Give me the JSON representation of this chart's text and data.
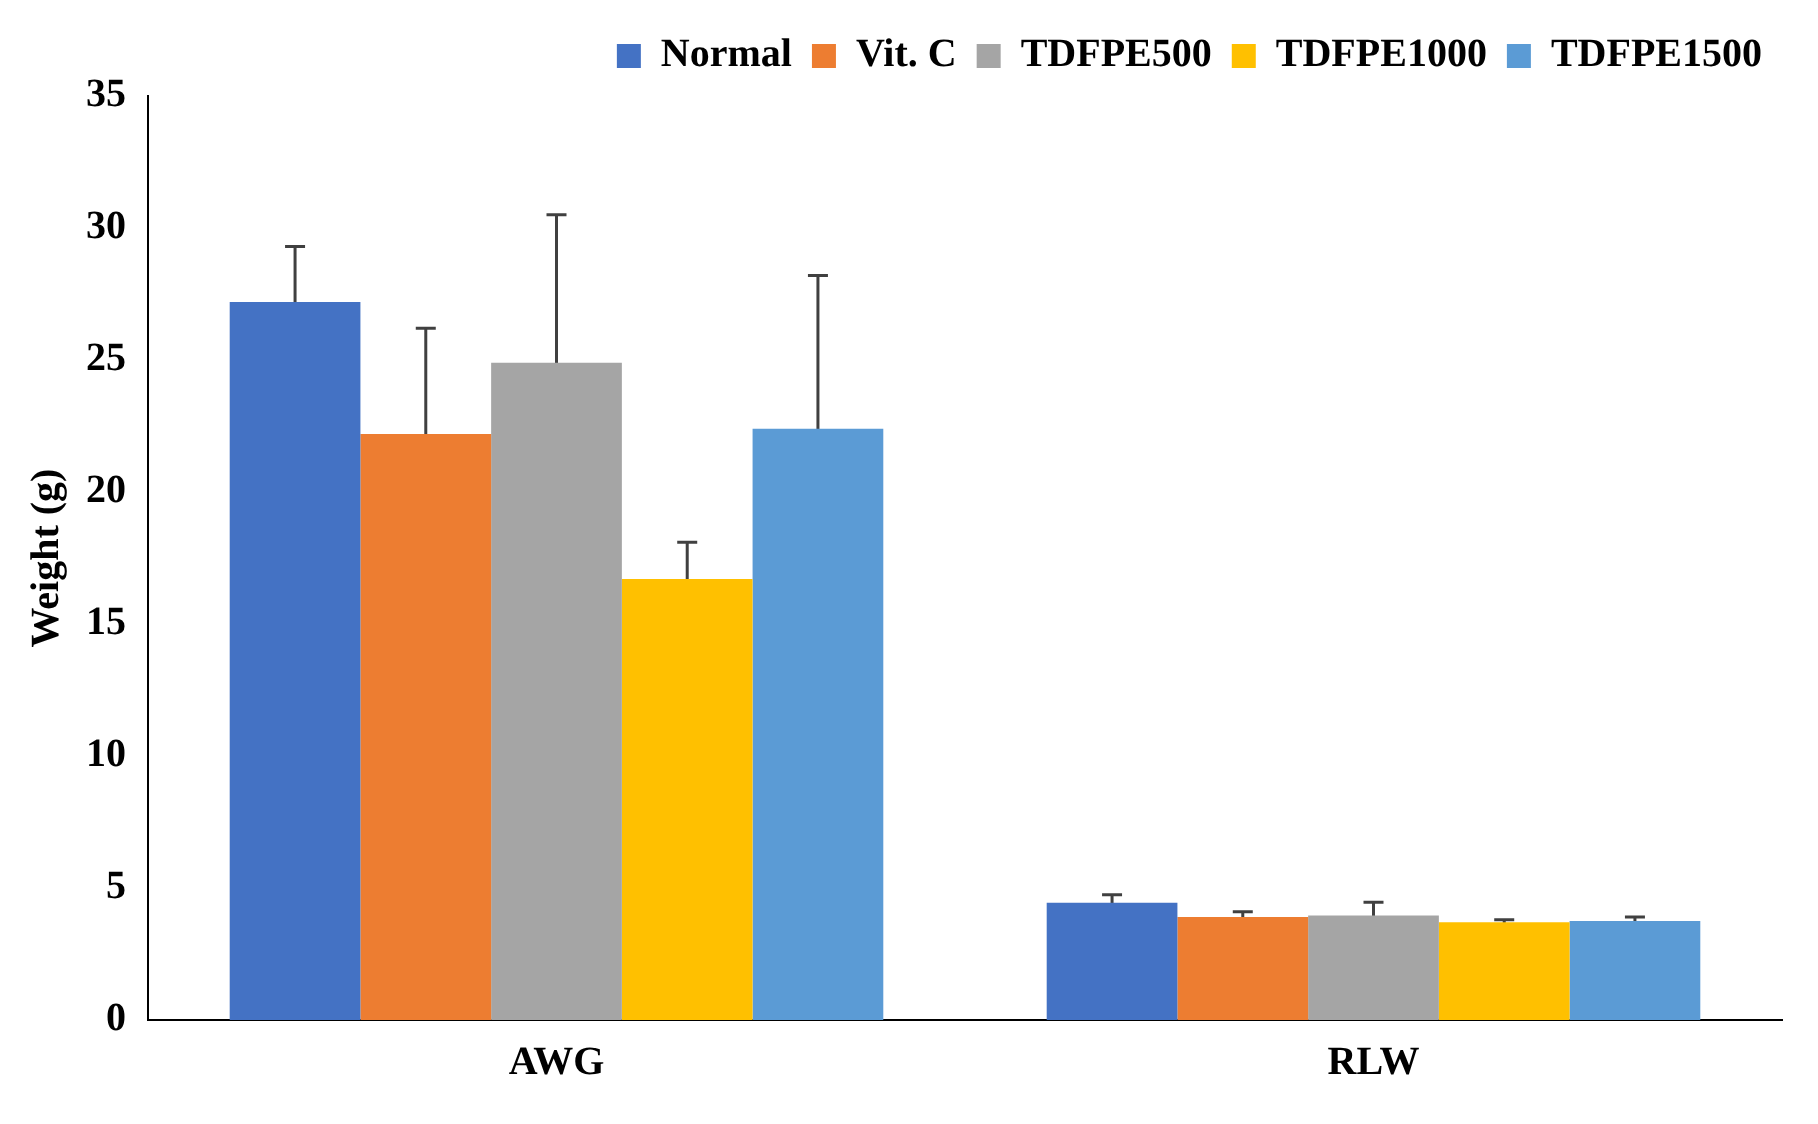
{
  "chart_data": {
    "type": "bar",
    "ylabel": "Weight (g)",
    "categories": [
      "AWG",
      "RLW"
    ],
    "series": [
      {
        "name": "Normal",
        "color": "#4472c4",
        "values": [
          27.2,
          4.44
        ],
        "errors": [
          2.1,
          0.3
        ]
      },
      {
        "name": "Vit. C",
        "color": "#ed7d31",
        "values": [
          22.2,
          3.9
        ],
        "errors": [
          4.0,
          0.2
        ]
      },
      {
        "name": "TDFPE500",
        "color": "#a5a5a5",
        "values": [
          24.9,
          3.96
        ],
        "errors": [
          5.6,
          0.5
        ]
      },
      {
        "name": "TDFPE1000",
        "color": "#ffc000",
        "values": [
          16.7,
          3.7
        ],
        "errors": [
          1.4,
          0.1
        ]
      },
      {
        "name": "TDFPE1500",
        "color": "#5b9bd5",
        "values": [
          22.4,
          3.75
        ],
        "errors": [
          5.8,
          0.15
        ]
      }
    ],
    "ylim": [
      0,
      35
    ],
    "yticks": [
      0,
      5,
      10,
      15,
      20,
      25,
      30,
      35
    ],
    "grid": false,
    "legend": "top right"
  }
}
